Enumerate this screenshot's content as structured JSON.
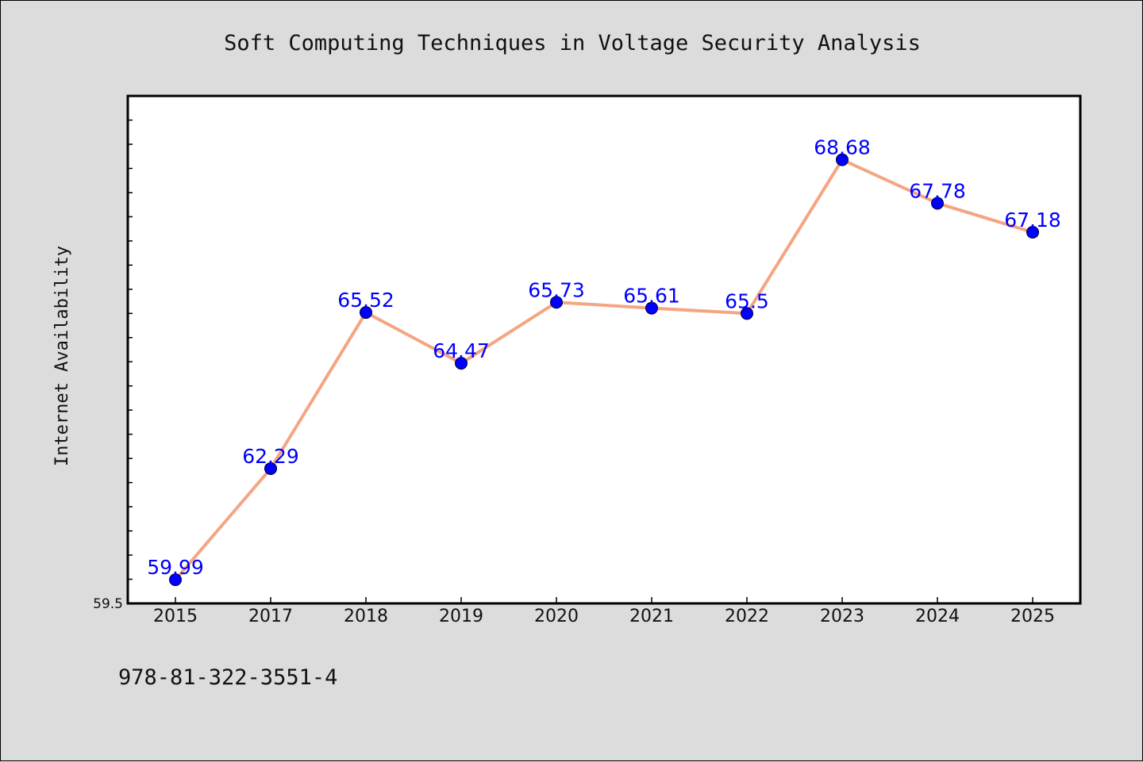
{
  "chart_data": {
    "type": "line",
    "title": "Soft Computing Techniques in Voltage Security Analysis",
    "xlabel": "",
    "ylabel": "Internet Availability",
    "categories": [
      "2015",
      "2017",
      "2018",
      "2019",
      "2020",
      "2021",
      "2022",
      "2023",
      "2024",
      "2025"
    ],
    "series": [
      {
        "values": [
          59.99,
          62.29,
          65.52,
          64.47,
          65.73,
          65.61,
          65.5,
          68.68,
          67.78,
          67.18
        ],
        "labels": [
          "59.99",
          "62.29",
          "65.52",
          "64.47",
          "65.73",
          "65.61",
          "65.5",
          "68.68",
          "67.78",
          "67.18"
        ],
        "line_color": "#f4a582",
        "marker_color": "#0000ff",
        "label_color": "#0000ff"
      }
    ],
    "ylim": [
      59.5,
      70.0
    ],
    "y_tick_labels": [
      "59.5"
    ],
    "y_minor_step": 0.5,
    "grid": false,
    "legend": "none"
  },
  "footer": {
    "isbn": "978-81-322-3551-4"
  },
  "colors": {
    "background": "#dcdcdc",
    "plot_background": "#ffffff",
    "axis": "#000000"
  }
}
